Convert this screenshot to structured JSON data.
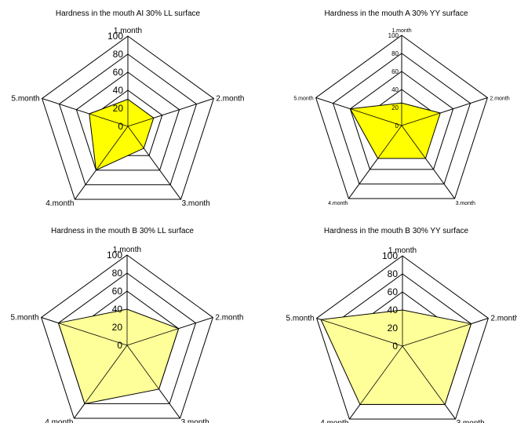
{
  "chart_data": [
    {
      "type": "radar",
      "title": "Hardness in the mouth  AI 30% LL surface",
      "axes": [
        "1.month",
        "2.month",
        "3.month",
        "4.month",
        "5.month"
      ],
      "rlim": [
        0,
        100
      ],
      "ticks": [
        "0",
        "20",
        "40",
        "60",
        "80",
        "100"
      ],
      "series": [
        {
          "values": [
            30,
            30,
            30,
            60,
            45
          ]
        }
      ],
      "fill_color": "#FFFF00"
    },
    {
      "type": "radar",
      "title": "Hardness in the mouth  A 30% YY surface",
      "axes": [
        "1.month",
        "2.month",
        "3.month",
        "4.month",
        "5.month"
      ],
      "rlim": [
        0,
        100
      ],
      "ticks": [
        "0",
        "20",
        "40",
        "60",
        "80",
        "100"
      ],
      "series": [
        {
          "values": [
            25,
            45,
            45,
            45,
            60
          ]
        }
      ],
      "fill_color": "#FFFF00"
    },
    {
      "type": "radar",
      "title": "Hardness in the mouth  B 30% LL surface",
      "axes": [
        "1.month",
        "2.month",
        "3.month",
        "4.month",
        "5.month"
      ],
      "rlim": [
        0,
        100
      ],
      "ticks": [
        "0",
        "20",
        "40",
        "60",
        "80",
        "100"
      ],
      "series": [
        {
          "values": [
            40,
            60,
            60,
            80,
            80
          ]
        }
      ],
      "fill_color": "#FFFF99"
    },
    {
      "type": "radar",
      "title": "Hardness in the mouth  B 30% YY surface",
      "axes": [
        "1.month",
        "2.month",
        "3.month",
        "4.month",
        "5.month"
      ],
      "rlim": [
        0,
        100
      ],
      "ticks": [
        "0",
        "20",
        "40",
        "60",
        "80",
        "100"
      ],
      "series": [
        {
          "values": [
            40,
            80,
            80,
            80,
            95
          ]
        }
      ],
      "fill_color": "#FFFF99"
    }
  ]
}
